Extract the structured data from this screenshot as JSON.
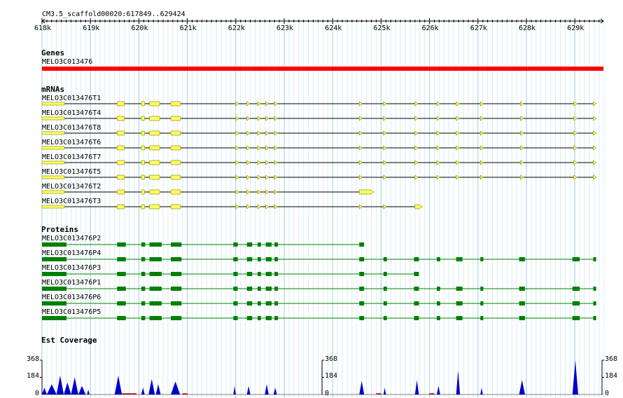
{
  "ruler": {
    "title": "CM3.5_scaffold00020:617849..629424",
    "ticks": [
      "618k",
      "619k",
      "620k",
      "621k",
      "622k",
      "623k",
      "624k",
      "625k",
      "626k",
      "627k",
      "628k",
      "629k"
    ],
    "range_start": 617849,
    "range_end": 629424
  },
  "colors": {
    "grid_major": "#9ccfe0",
    "grid_minor": "#d6eef6",
    "gene": "#ff0000",
    "mrna_fill": "#ffff66",
    "mrna_stroke": "#999900",
    "protein": "#008000",
    "coverage": "#0000cc",
    "coverage_low": "#cc0000"
  },
  "genes": {
    "title": "Genes",
    "items": [
      {
        "label": "MELO3C013476"
      }
    ]
  },
  "mrnas": {
    "title": "mRNAs",
    "items": [
      {
        "label": "MELO3C013476T1"
      },
      {
        "label": "MELO3C013476T4"
      },
      {
        "label": "MELO3C013476T8"
      },
      {
        "label": "MELO3C013476T6"
      },
      {
        "label": "MELO3C013476T7"
      },
      {
        "label": "MELO3C013476T5"
      },
      {
        "label": "MELO3C013476T2"
      },
      {
        "label": "MELO3C013476T3"
      }
    ]
  },
  "proteins": {
    "title": "Proteins",
    "items": [
      {
        "label": "MELO3C013476P2"
      },
      {
        "label": "MELO3C013476P4"
      },
      {
        "label": "MELO3C013476P3"
      },
      {
        "label": "MELO3C013476P1"
      },
      {
        "label": "MELO3C013476P6"
      },
      {
        "label": "MELO3C013476P5"
      }
    ]
  },
  "coverage": {
    "title": "Est Coverage",
    "max_label": "368",
    "mid_label": "184",
    "min_label": "0"
  }
}
